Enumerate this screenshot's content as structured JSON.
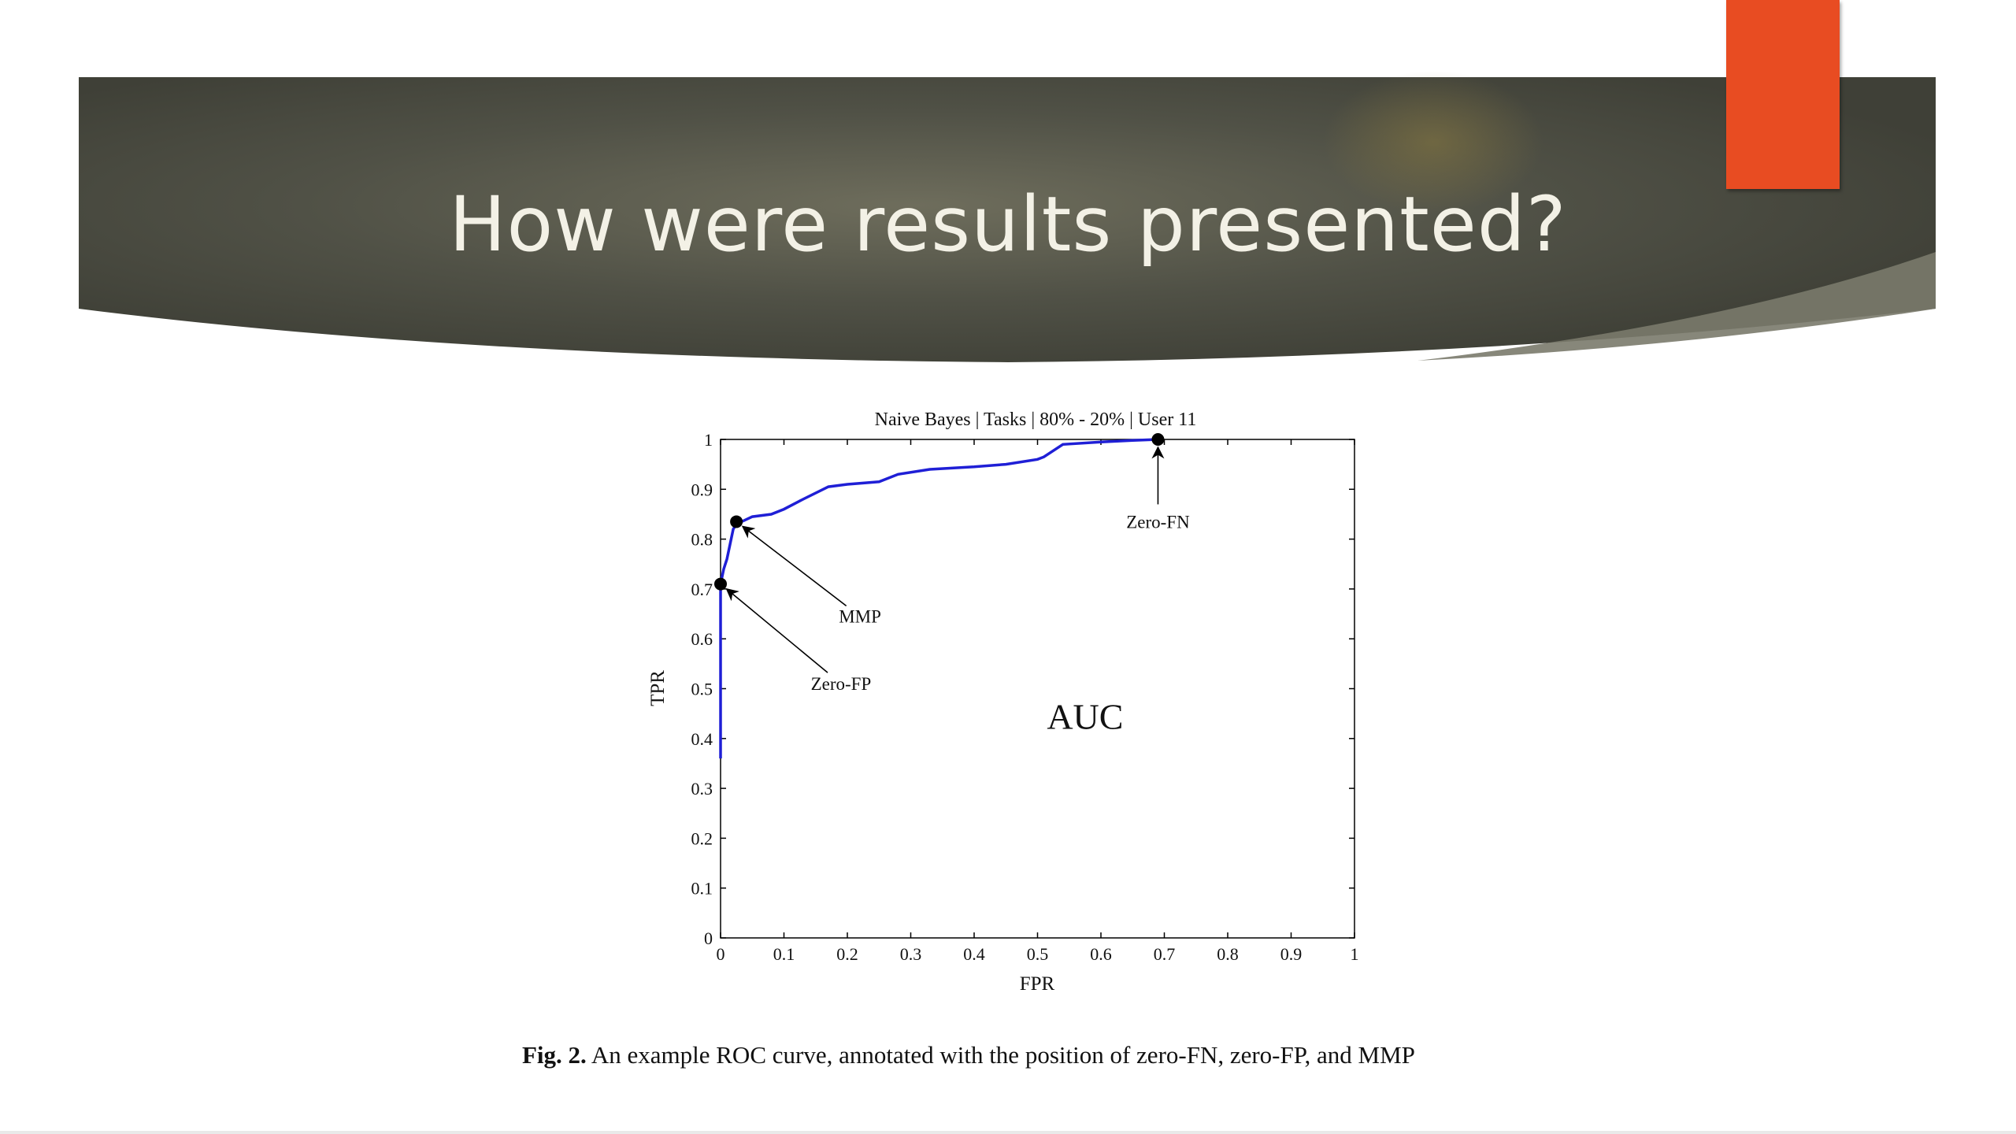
{
  "slide": {
    "title": "How were results presented?",
    "colors": {
      "banner": "#45463d",
      "accent": "#e84c22",
      "title_text": "#f3f1e6"
    }
  },
  "chart_data": {
    "type": "line",
    "title": "Naive Bayes | Tasks | 80% - 20% | User 11",
    "xlabel": "FPR",
    "ylabel": "TPR",
    "xlim": [
      0,
      1
    ],
    "ylim": [
      0,
      1
    ],
    "x_ticks": [
      "0",
      "0.1",
      "0.2",
      "0.3",
      "0.4",
      "0.5",
      "0.6",
      "0.7",
      "0.8",
      "0.9",
      "1"
    ],
    "y_ticks": [
      "0",
      "0.1",
      "0.2",
      "0.3",
      "0.4",
      "0.5",
      "0.6",
      "0.7",
      "0.8",
      "0.9",
      "1"
    ],
    "grid": false,
    "series": [
      {
        "color": "#1f1fd6",
        "x": [
          0,
          0,
          0,
          0.005,
          0.01,
          0.02,
          0.025,
          0.05,
          0.08,
          0.1,
          0.13,
          0.17,
          0.2,
          0.25,
          0.28,
          0.33,
          0.4,
          0.45,
          0.5,
          0.51,
          0.54,
          0.6,
          0.65,
          0.69
        ],
        "y": [
          0.36,
          0.5,
          0.71,
          0.74,
          0.76,
          0.82,
          0.83,
          0.845,
          0.85,
          0.86,
          0.88,
          0.905,
          0.91,
          0.915,
          0.93,
          0.94,
          0.945,
          0.95,
          0.96,
          0.965,
          0.99,
          0.995,
          0.998,
          1.0
        ]
      }
    ],
    "annotations": [
      {
        "label": "Zero-FN",
        "point": [
          0.69,
          1.0
        ],
        "text_at": [
          0.69,
          0.835
        ]
      },
      {
        "label": "MMP",
        "point": [
          0.025,
          0.835
        ],
        "text_at": [
          0.22,
          0.645
        ]
      },
      {
        "label": "Zero-FP",
        "point": [
          0.0,
          0.71
        ],
        "text_at": [
          0.19,
          0.51
        ]
      }
    ],
    "overlay_label": {
      "text": "AUC",
      "at": [
        0.575,
        0.445
      ]
    }
  },
  "caption": {
    "label": "Fig. 2.",
    "text": "An example ROC curve, annotated with the position of zero-FN, zero-FP, and MMP"
  }
}
